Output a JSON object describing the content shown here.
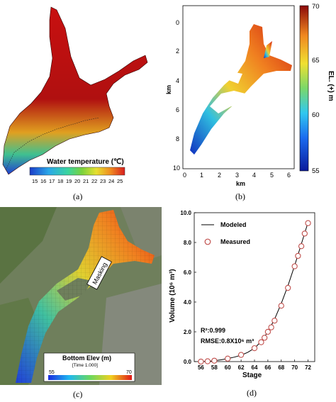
{
  "panels": {
    "a": {
      "caption": "(a)",
      "colorbar_title": "Water temperature  (℃)",
      "colorbar_ticks": [
        "15",
        "16",
        "17",
        "18",
        "19",
        "20",
        "21",
        "22",
        "23",
        "24",
        "25"
      ]
    },
    "b": {
      "caption": "(b)",
      "xlabel": "km",
      "ylabel": "km",
      "x_ticks": [
        "0",
        "1",
        "2",
        "3",
        "4",
        "5",
        "6"
      ],
      "y_ticks": [
        "0",
        "2",
        "4",
        "6",
        "8",
        "10"
      ],
      "colorbar_label": "EL. (+) m",
      "colorbar_ticks": [
        "70",
        "65",
        "60",
        "55"
      ]
    },
    "c": {
      "caption": "(c)",
      "masking_label": "Masking",
      "legend_title": "Bottom Elev (m)",
      "legend_subtitle": "[Time 1.000]",
      "legend_min": "55",
      "legend_max": "70"
    }
  },
  "colors": {
    "hot": "#b40f0f",
    "cool": "#1e46c8"
  },
  "chart_data": [
    {
      "type": "scatter",
      "panel": "(d)",
      "xlabel": "Stage",
      "ylabel": "Volume (10⁶ m³)",
      "x_ticks": [
        "56",
        "58",
        "60",
        "62",
        "64",
        "66",
        "68",
        "70",
        "72"
      ],
      "y_ticks": [
        "0.0",
        "2.0",
        "4.0",
        "6.0",
        "8.0",
        "10.0"
      ],
      "xlim": [
        55,
        73
      ],
      "ylim": [
        0,
        10
      ],
      "legend": {
        "placement": "top-left",
        "entries": [
          "Modeled",
          "Measured"
        ]
      },
      "annotations": [
        "R²:0.999",
        "RMSE:0.8X10⁶ m³"
      ],
      "series": [
        {
          "name": "Modeled",
          "style": "line",
          "x": [
            56,
            57,
            58,
            59,
            60,
            61,
            62,
            63,
            64,
            65,
            66,
            67,
            68,
            69,
            70,
            71,
            72
          ],
          "y": [
            0,
            0.02,
            0.06,
            0.12,
            0.2,
            0.3,
            0.43,
            0.62,
            0.9,
            1.35,
            2.0,
            2.85,
            3.9,
            5.1,
            6.45,
            7.9,
            9.35
          ]
        },
        {
          "name": "Measured",
          "style": "markers",
          "x": [
            56,
            57,
            58,
            60,
            62,
            64,
            65,
            65.5,
            66,
            66.5,
            67,
            68,
            69,
            70,
            70.5,
            71,
            71.5,
            72
          ],
          "y": [
            0,
            0.02,
            0.06,
            0.2,
            0.45,
            0.9,
            1.3,
            1.6,
            2.0,
            2.3,
            2.75,
            3.75,
            4.95,
            6.4,
            7.1,
            7.75,
            8.6,
            9.3
          ]
        }
      ]
    }
  ]
}
